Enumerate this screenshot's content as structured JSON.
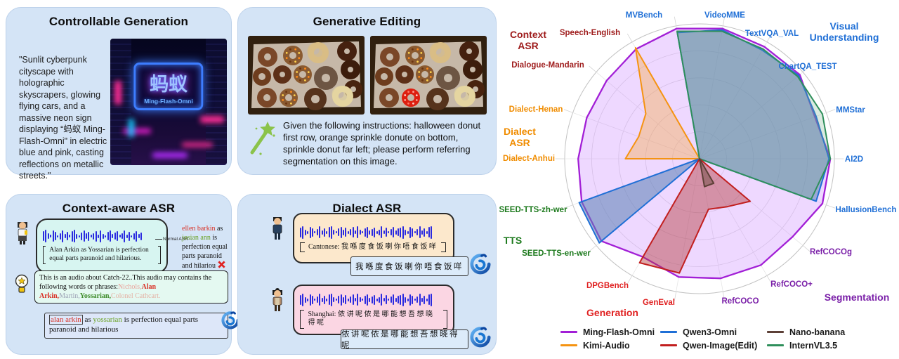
{
  "panels": {
    "controllable_generation": {
      "title": "Controllable Generation",
      "prompt": "\"Sunlit cyberpunk cityscape with holographic skyscrapers, glowing flying cars, and a massive neon sign displaying “蚂蚁 Ming-Flash-Omni\" in electric blue and pink, casting reflections on metallic streets.\"",
      "sign_cn": "蚂蚁",
      "sign_en": "Ming-Flash-Omni"
    },
    "generative_editing": {
      "title": "Generative Editing",
      "instruction": "Given the following instructions: halloween donut first row, orange sprinkle donute on bottom, sprinkle donut far left; please perform referring segmentation on this image."
    },
    "context_asr": {
      "title": "Context-aware ASR",
      "speech_text": "Alan Arkin as Yossarian is perfection equal parts paranoid and hilarious.",
      "arrow_label": "Normal ASR",
      "normal_output_segments": [
        {
          "text": "ellen barkin ",
          "color": "#d93025"
        },
        {
          "text": "as ",
          "color": "#111111"
        },
        {
          "text": "josian ann ",
          "color": "#6aa121"
        },
        {
          "text": "is perfection equal parts paranoid and hilariou ",
          "color": "#111111"
        }
      ],
      "hint_segments": [
        {
          "text": "This is an audio about Catch-22..This audio may contains the following words or phrases:",
          "color": "#111111"
        },
        {
          "text": "Nichols,",
          "color": "#eaa39b"
        },
        {
          "text": "Alan Arkin,",
          "color": "#d93025",
          "bold": true
        },
        {
          "text": "Martin,",
          "color": "#a0a6b8"
        },
        {
          "text": "Yossarian,",
          "color": "#3c8a28",
          "bold": true
        },
        {
          "text": "Colonel Cathcart.",
          "color": "#e5b3a5"
        }
      ],
      "result_segments": [
        {
          "text": "alan arkin",
          "color": "#d93025",
          "boxed": true
        },
        {
          "text": " as ",
          "color": "#111111"
        },
        {
          "text": "yossarian",
          "color": "#6aa121"
        },
        {
          "text": " is perfection equal parts paranoid and hilarious",
          "color": "#111111"
        }
      ]
    },
    "dialect_asr": {
      "title": "Dialect ASR",
      "cantonese_label": "Cantonese: ",
      "cantonese_text": "我喺度食饭喇你唔食饭咩",
      "cantonese_result": "我喺度食饭喇你唔食饭咩",
      "shanghai_label": "Shanghai: ",
      "shanghai_text": "侬讲呢侬是哪能想吾想晓得呢",
      "shanghai_result": "侬讲呢侬是哪能想吾想晓得呢"
    }
  },
  "radar": {
    "chart_data": {
      "type": "radar",
      "rmax": 100,
      "axes": [
        "MVBench",
        "VideoMME",
        "TextVQA_VAL",
        "ChartQA_TEST",
        "MMStar",
        "AI2D",
        "HallusionBench",
        "RefCOCOg",
        "RefCOCO+",
        "RefCOCO",
        "GenEval",
        "DPGBench",
        "SEED-TTS-en-wer",
        "SEED-TTS-zh-wer",
        "Dialect-Anhui",
        "Dialect-Henan",
        "Dialogue-Mandarin",
        "Speech-English"
      ],
      "axis_colors": [
        "#1f6fd6",
        "#1f6fd6",
        "#1f6fd6",
        "#1f6fd6",
        "#1f6fd6",
        "#1f6fd6",
        "#1f6fd6",
        "#7a1fa8",
        "#7a1fa8",
        "#7a1fa8",
        "#e02020",
        "#e02020",
        "#1d7a1d",
        "#1d7a1d",
        "#f08c00",
        "#f08c00",
        "#9e1b1b",
        "#9e1b1b"
      ],
      "series": [
        {
          "name": "Ming-Flash-Omni",
          "color": "#a21fd6",
          "fill": "rgba(199,125,255,0.30)",
          "values": [
            98,
            98,
            96,
            97,
            91,
            97,
            97,
            90,
            91,
            90,
            89,
            84,
            95,
            93,
            90,
            89,
            90,
            94
          ]
        },
        {
          "name": "Kimi-Audio",
          "color": "#f59311",
          "fill": "rgba(247,168,60,0.38)",
          "values": [
            0,
            0,
            0,
            0,
            0,
            0,
            0,
            0,
            0,
            0,
            0,
            0,
            0,
            0,
            55,
            48,
            52,
            95
          ]
        },
        {
          "name": "Qwen3-Omni",
          "color": "#1f6fd6",
          "fill": "rgba(90,130,180,0.55)",
          "values": [
            95,
            97,
            93,
            96,
            92,
            96,
            92,
            0,
            0,
            0,
            0,
            0,
            97,
            95,
            0,
            0,
            0,
            0
          ]
        },
        {
          "name": "Qwen-Image(Edit)",
          "color": "#c21f1f",
          "fill": "rgba(180,60,60,0.45)",
          "values": [
            0,
            0,
            0,
            0,
            0,
            0,
            0,
            49,
            41,
            38,
            86,
            89,
            0,
            0,
            0,
            0,
            0,
            0
          ]
        },
        {
          "name": "Nano-banana",
          "color": "#5d4037",
          "fill": "rgba(109,76,65,0.50)",
          "values": [
            0,
            0,
            0,
            0,
            0,
            0,
            0,
            0,
            21,
            21,
            0,
            0,
            0,
            0,
            0,
            0,
            0,
            0
          ]
        },
        {
          "name": "InternVL3.5",
          "color": "#2f8f5b",
          "fill": "rgba(110,170,130,0.25)",
          "values": [
            96,
            96,
            94,
            95,
            97,
            97,
            88,
            0,
            0,
            0,
            0,
            0,
            0,
            0,
            0,
            0,
            0,
            0
          ]
        }
      ],
      "groups": [
        {
          "label": "Context ASR",
          "lines": [
            "Context",
            "ASR"
          ],
          "color": "#9e1b1b"
        },
        {
          "label": "Visual Understanding",
          "lines": [
            "Visual",
            "Understanding"
          ],
          "color": "#1f6fd6"
        },
        {
          "label": "Dialect ASR",
          "lines": [
            "Dialect",
            "ASR"
          ],
          "color": "#f08c00"
        },
        {
          "label": "TTS",
          "lines": [
            "TTS"
          ],
          "color": "#1d7a1d"
        },
        {
          "label": "Generation",
          "lines": [
            "Generation"
          ],
          "color": "#e02020"
        },
        {
          "label": "Segmentation",
          "lines": [
            "Segmentation"
          ],
          "color": "#7a1fa8"
        }
      ],
      "legend_position": "bottom"
    }
  }
}
